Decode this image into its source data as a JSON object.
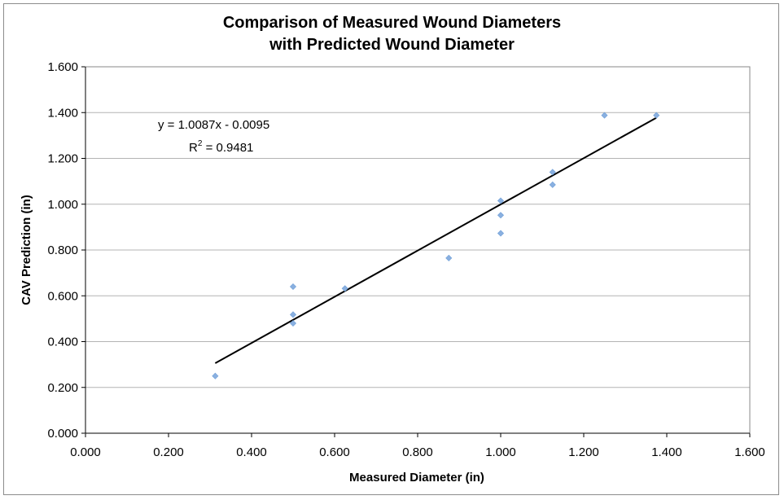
{
  "chart_data": {
    "type": "scatter",
    "title_lines": [
      "Comparison of Measured Wound Diameters",
      "with Predicted Wound Diameter"
    ],
    "xlabel": "Measured Diameter (in)",
    "ylabel": "CAV Prediction (in)",
    "xlim": [
      0,
      1.6
    ],
    "ylim": [
      0,
      1.6
    ],
    "x_ticks": [
      "0.000",
      "0.200",
      "0.400",
      "0.600",
      "0.800",
      "1.000",
      "1.200",
      "1.400",
      "1.600"
    ],
    "y_ticks": [
      "0.000",
      "0.200",
      "0.400",
      "0.600",
      "0.800",
      "1.000",
      "1.200",
      "1.400",
      "1.600"
    ],
    "grid": "horizontal",
    "series": [
      {
        "color": "#8ab0e0",
        "points": [
          {
            "x": 0.3125,
            "y": 0.25
          },
          {
            "x": 0.5,
            "y": 0.64
          },
          {
            "x": 0.5,
            "y": 0.518
          },
          {
            "x": 0.5,
            "y": 0.48
          },
          {
            "x": 0.625,
            "y": 0.632
          },
          {
            "x": 0.875,
            "y": 0.765
          },
          {
            "x": 1.0,
            "y": 1.015
          },
          {
            "x": 1.0,
            "y": 0.952
          },
          {
            "x": 1.0,
            "y": 0.873
          },
          {
            "x": 1.125,
            "y": 1.14
          },
          {
            "x": 1.125,
            "y": 1.085
          },
          {
            "x": 1.25,
            "y": 1.388
          },
          {
            "x": 1.375,
            "y": 1.388
          }
        ]
      }
    ],
    "trendline": {
      "slope": 1.0087,
      "intercept": -0.0095,
      "x_range": [
        0.3125,
        1.375
      ],
      "color": "#000000"
    },
    "annotations": {
      "equation": "y = 1.0087x - 0.0095",
      "r2_prefix": "R",
      "r2_sup": "2",
      "r2_value": " = 0.9481"
    }
  }
}
